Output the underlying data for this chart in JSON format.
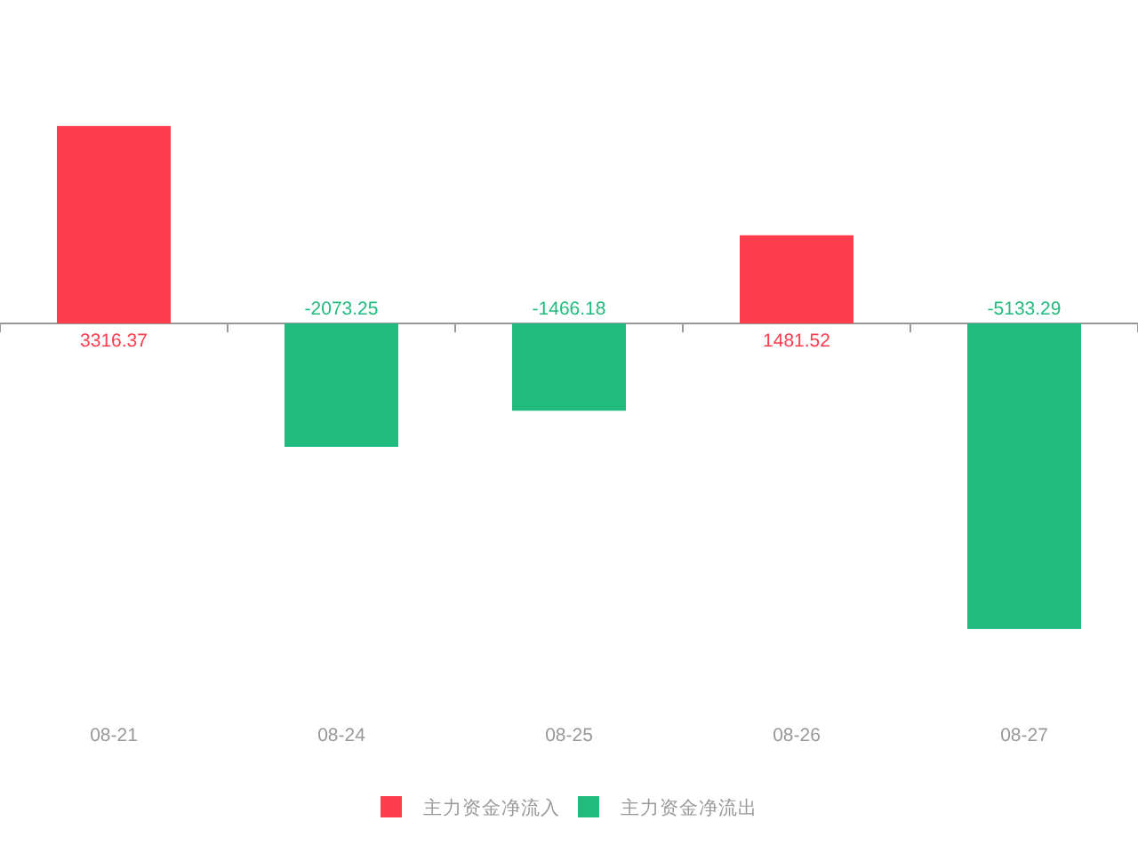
{
  "chart_data": {
    "type": "bar",
    "categories": [
      "08-21",
      "08-24",
      "08-25",
      "08-26",
      "08-27"
    ],
    "series": [
      {
        "name": "主力资金净流入",
        "color": "#fd3d4d",
        "values": [
          3316.37,
          null,
          null,
          1481.52,
          null
        ]
      },
      {
        "name": "主力资金净流出",
        "color": "#22bb7e",
        "values": [
          null,
          -2073.25,
          -1466.18,
          null,
          -5133.29
        ]
      }
    ],
    "stacked": true,
    "tick_labels": "x",
    "data_labels": true,
    "legend": "bottom"
  }
}
